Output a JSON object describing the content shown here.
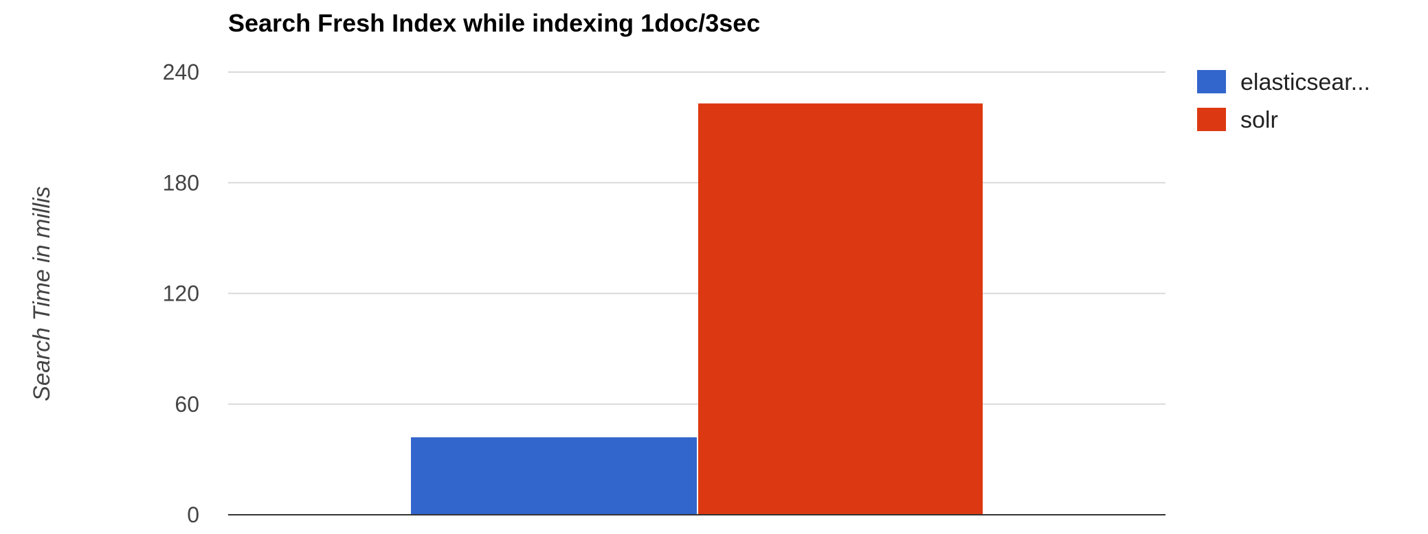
{
  "chart_data": {
    "type": "bar",
    "title": "Search Fresh Index while indexing 1doc/3sec",
    "xlabel": "",
    "ylabel": "Search Time in millis",
    "ylim": [
      0,
      240
    ],
    "yticks": [
      0,
      60,
      120,
      180,
      240
    ],
    "y_tick_labels": [
      "0",
      "60",
      "120",
      "180",
      "240"
    ],
    "grid": true,
    "legend_position": "right",
    "categories": [
      ""
    ],
    "series": [
      {
        "name": "elasticsear...",
        "values": [
          42
        ],
        "color": "#3366cc"
      },
      {
        "name": "solr",
        "values": [
          223
        ],
        "color": "#dc3912"
      }
    ]
  }
}
